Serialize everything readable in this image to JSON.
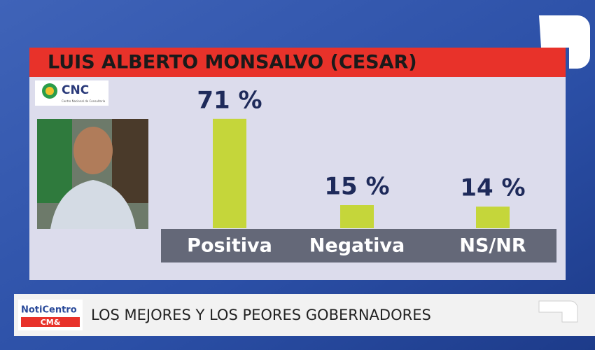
{
  "chart_data": {
    "type": "bar",
    "title": "LUIS ALBERTO MONSALVO (CESAR)",
    "categories": [
      "Positiva",
      "Negativa",
      "NS/NR"
    ],
    "values": [
      71,
      15,
      14
    ],
    "value_labels": [
      "71 %",
      "15 %",
      "14 %"
    ],
    "color": "#c5d63a"
  },
  "source": {
    "name": "CNC",
    "subtitle": "Centro Nacional de Consultoría"
  },
  "ticker": {
    "brand": "NotiCentro",
    "brand_sub": "CM&",
    "headline": "LOS MEJORES Y LOS PEORES GOBERNADORES"
  }
}
